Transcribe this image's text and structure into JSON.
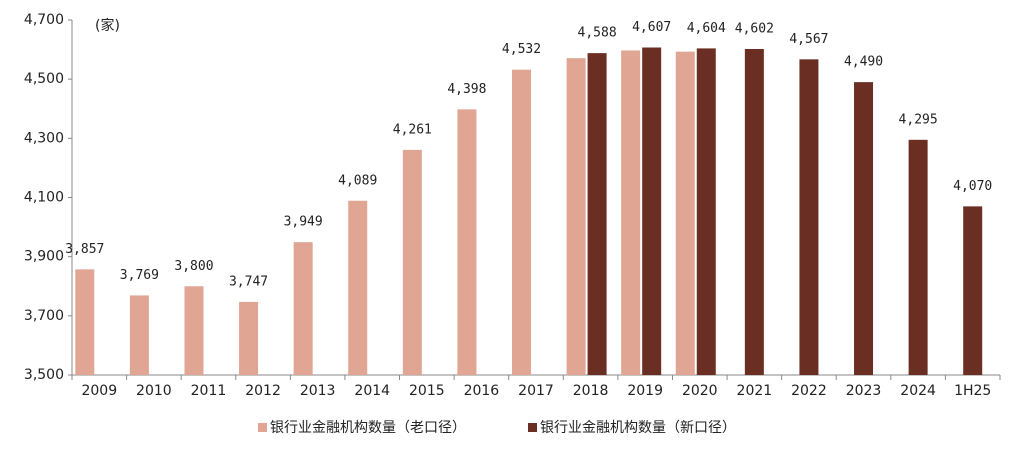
{
  "chart_data": {
    "type": "bar",
    "annotation": "(家)",
    "categories": [
      "2009",
      "2010",
      "2011",
      "2012",
      "2013",
      "2014",
      "2015",
      "2016",
      "2017",
      "2018",
      "2019",
      "2020",
      "2021",
      "2022",
      "2023",
      "2024",
      "1H25"
    ],
    "series": [
      {
        "name": "银行业金融机构数量（老口径）",
        "color": "#E0A593",
        "values": [
          3857,
          3769,
          3800,
          3747,
          3949,
          4089,
          4261,
          4398,
          4532,
          4571,
          4597,
          4593,
          null,
          null,
          null,
          null,
          null
        ],
        "value_labels": [
          "3,857",
          "3,769",
          "3,800",
          "3,747",
          "3,949",
          "4,089",
          "4,261",
          "4,398",
          "4,532",
          null,
          null,
          null,
          null,
          null,
          null,
          null,
          null
        ]
      },
      {
        "name": "银行业金融机构数量（新口径）",
        "color": "#6B2E22",
        "values": [
          null,
          null,
          null,
          null,
          null,
          null,
          null,
          null,
          null,
          4588,
          4607,
          4604,
          4602,
          4567,
          4490,
          4295,
          4070
        ],
        "value_labels": [
          null,
          null,
          null,
          null,
          null,
          null,
          null,
          null,
          null,
          "4,588",
          "4,607",
          "4,604",
          "4,602",
          "4,567",
          "4,490",
          "4,295",
          "4,070"
        ]
      }
    ],
    "ylim": [
      3500,
      4700
    ],
    "yticks": [
      {
        "value": 3500,
        "label": "3,500"
      },
      {
        "value": 3700,
        "label": "3,700"
      },
      {
        "value": 3900,
        "label": "3,900"
      },
      {
        "value": 4100,
        "label": "4,100"
      },
      {
        "value": 4300,
        "label": "4,300"
      },
      {
        "value": 4500,
        "label": "4,500"
      },
      {
        "value": 4700,
        "label": "4,700"
      }
    ],
    "grid": false,
    "legend": "bottom"
  }
}
